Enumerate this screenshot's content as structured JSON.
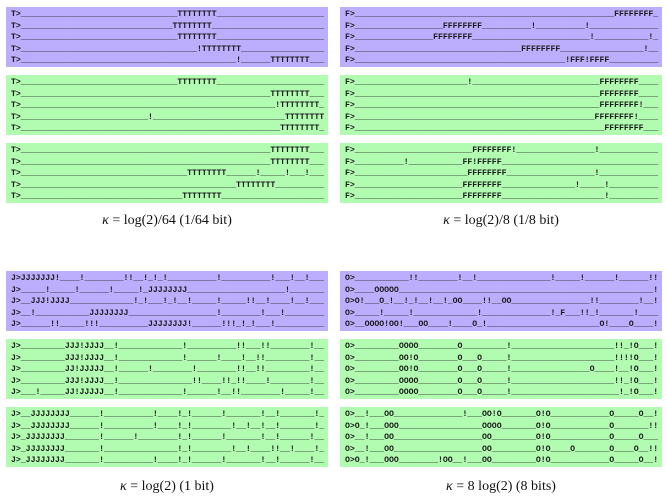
{
  "colors": {
    "purple": "#bcaefc",
    "green": "#b1fcb1"
  },
  "panels": [
    {
      "caption_symbol": "κ",
      "caption_rest": " = log(2)/64  (1/64 bit)",
      "groups": [
        {
          "color": "purple",
          "lines": [
            "T>________________________________TTTTTTTT______________________",
            "T>_______________________________TTTTTTTT_______________________",
            "T>________________________________TTTTTTTT______________________",
            "T>____________________________________!TTTTTTTT_________________",
            "T>____________________________________________!______TTTTTTTT___"
          ]
        },
        {
          "color": "green",
          "lines": [
            "T>________________________________TTTTTTTT______________________",
            "T>___________________________________________________TTTTTTTT___",
            "T>____________________________________________________!TTTTTTTT_",
            "T>__________________________!___________________________TTTTTTTT",
            "T>_____________________________________________________TTTTTTTT_"
          ]
        },
        {
          "color": "green",
          "lines": [
            "T>___________________________________________________TTTTTTTT___",
            "T>___________________________________________________TTTTTTTT___",
            "T>__________________________________TTTTTTTT______!_____!___!___",
            "T>____________________________________________TTTTTTTT__________",
            "T>_________________________________TTTTTTTT_____________________"
          ]
        }
      ]
    },
    {
      "caption_symbol": "κ",
      "caption_rest": " = log(2)/8  (1/8 bit)",
      "groups": [
        {
          "color": "purple",
          "lines": [
            "F>_____________________________________________________FFFFFFFF_",
            "F>__________________FFFFFFFF__________!__________!______________",
            "F>________________FFFFFFFF________________________!___________!_",
            "F>__________________________________FFFFFFFF_________________!__",
            "F>___________________________________________!FFF!FFFF__________"
          ]
        },
        {
          "color": "green",
          "lines": [
            "F>_______________________!__________________________FFFFFFFF____",
            "F>__________________________________________________FFFFFFFF____",
            "F>__________________________________________________FFFFFFFF!___",
            "F>_________________________________________________FFFFFFFF!____",
            "F>___________________________________________________FFFFFFFF___"
          ]
        },
        {
          "color": "green",
          "lines": [
            "F>________________________FFFFFFFF!________________!____________",
            "F>__________!___________FF!FFFFF________________________________",
            "F>_______________________FFFFFFFF__________________!____________",
            "F>______________________FFFFFFFF_______________!_____!__________",
            "F>______________________FFFFFFFF_____________________!__________"
          ]
        }
      ]
    },
    {
      "caption_symbol": "κ",
      "caption_rest": " = log(2)  (1 bit)",
      "groups": [
        {
          "color": "purple",
          "lines": [
            "J>JJJJJJJ!____!________!!__!_!_!__________!__________!___!__!___",
            "J>_____!_____!______!_____!_JJJJJJJJ____________________!_______",
            "J>__JJJ!JJJJ_____________!_!___!_!__!_____!_____!!__!____!__!___",
            "J>__!___________JJJJJJJJ__________________!________!___!________",
            "J>______!!_____!!!__________JJJJJJJJ!______!!!_!_!___!__________"
          ]
        },
        {
          "color": "green",
          "lines": [
            "J>_________JJJ!JJJJ__!_____________!__________!!___!!________!__",
            "J>_________JJJ!JJJJ__!_____________!______!____!__!!_________!__",
            "J>_________JJ!JJJJJ__!______!________!________!!__!!_________!__",
            "J>_________JJJ!JJJJ__!_______________!!____!!_!!____!________!__",
            "J>___!_____JJ!JJJJJ__!_____________!______!__!!________!_____!__"
          ]
        },
        {
          "color": "green",
          "lines": [
            "J>__JJJJJJJJ______!__________!____!_!______!_______!__!_______!_",
            "J>__JJJJJJJJ______!__________!____!_!________!__!__!__!_______!_",
            "J>_JJJJJJJJ_______!______!________!_!______!_______!__!______!__",
            "J>_JJJJJJJJ_______!_______________!_!________!__!____!!__!____!_",
            "J>_JJJJJJJJ_______!__________!____!_!______!_______!__!______!__"
          ]
        }
      ]
    },
    {
      "caption_symbol": "κ",
      "caption_rest": " = 8 log(2)  (8 bits)",
      "groups": [
        {
          "color": "purple",
          "lines": [
            "O>___________!!________!__!_______________!_____!______!______!!",
            "O>____OOOOO____________________________________________________!",
            "O>O!___O_!__!_!__!__!_OO____!!__OO________________!!________!__!",
            "O>_____!_____!_____________!______________!_F___!!_!_______!____",
            "O>__OOOO!OO!___OO____!____O_!_______________________O!____O____!"
          ]
        },
        {
          "color": "green",
          "lines": [
            "O>_________OOOO________O_________!_____________________!!_!O___!",
            "O>_________OO!O________O___O_____!_____________________!!!!O___!",
            "O>_________OO!O________O___O_____!________________O____!__!O___!",
            "O>_________OOOO________O___O_____!_____________________!!_!O___!",
            "O>_________OOOO________O___O_____!______________________!_!O___!"
          ]
        },
        {
          "color": "green",
          "lines": [
            "O>__!___OO______________!___OO!O_______O!O____________O_____O__!",
            "O>O_!___OOO_________________OOOO_______O!O____________O_______!!",
            "O>__!___OO__________________OO_________O!O____________O_____O___",
            "O>__!___OO__________________OO_________O!O____O_______O____O__!!",
            "O>O_!___OOO________!OO__!___OO_________O!O____________O_____O__!"
          ]
        }
      ]
    }
  ]
}
